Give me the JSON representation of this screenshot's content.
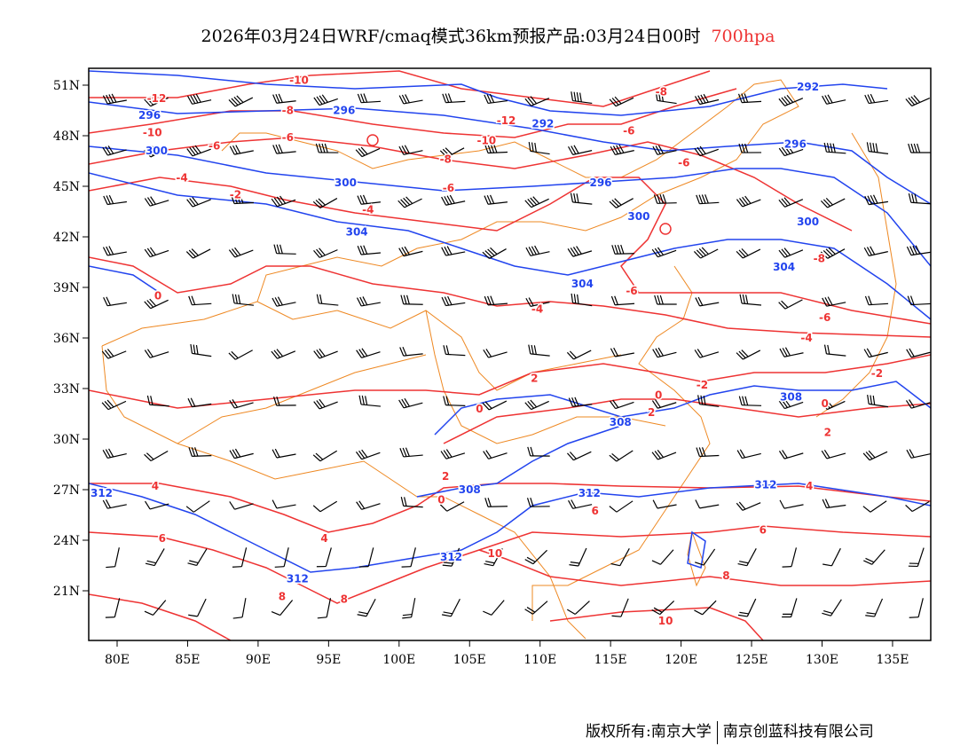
{
  "title": {
    "main": "2026年03月24日WRF/cmaq模式36km预报产品:03月24日00时",
    "level": "700hpa"
  },
  "footer": {
    "left": "版权所有:南京大学",
    "right": "南京创蓝科技有限公司"
  },
  "colors": {
    "height": "#2244ee",
    "temperature": "#ee3333",
    "boundary": "#ee8822",
    "wind": "#000000"
  },
  "axes": {
    "lon_ticks": [
      "80E",
      "85E",
      "90E",
      "95E",
      "100E",
      "105E",
      "110E",
      "115E",
      "120E",
      "125E",
      "130E",
      "135E"
    ],
    "lat_ticks": [
      "51N",
      "48N",
      "45N",
      "42N",
      "39N",
      "36N",
      "33N",
      "30N",
      "27N",
      "24N",
      "21N"
    ]
  },
  "chart_data": {
    "type": "contour-map",
    "lon_range": [
      78,
      138
    ],
    "lat_range": [
      18,
      52
    ],
    "height_labels": [
      [
        "296",
        82.3,
        49.2
      ],
      [
        "296",
        96.1,
        49.5
      ],
      [
        "300",
        82.8,
        47.1
      ],
      [
        "300",
        96.2,
        45.2
      ],
      [
        "304",
        97.0,
        42.3
      ],
      [
        "292",
        110.2,
        48.7
      ],
      [
        "292",
        129.0,
        50.9
      ],
      [
        "296",
        114.3,
        45.2
      ],
      [
        "296",
        128.1,
        47.5
      ],
      [
        "300",
        117.0,
        43.2
      ],
      [
        "300",
        129.0,
        42.9
      ],
      [
        "304",
        127.3,
        40.2
      ],
      [
        "304",
        113.0,
        39.2
      ],
      [
        "308",
        127.8,
        32.5
      ],
      [
        "308",
        115.7,
        31.0
      ],
      [
        "308",
        105.0,
        27.0
      ],
      [
        "312",
        113.5,
        26.8
      ],
      [
        "312",
        126.0,
        27.3
      ],
      [
        "312",
        78.9,
        26.8
      ],
      [
        "312",
        103.7,
        23.0
      ],
      [
        "312",
        92.8,
        21.7
      ]
    ],
    "temperature_labels": [
      [
        "-12",
        82.8,
        50.0
      ],
      [
        "-10",
        92.9,
        51.3
      ],
      [
        "-8",
        92.1,
        49.5
      ],
      [
        "-12",
        107.6,
        48.9
      ],
      [
        "-10",
        106.2,
        47.7
      ],
      [
        "-6",
        92.1,
        47.9
      ],
      [
        "-8",
        103.3,
        46.6
      ],
      [
        "-6",
        116.3,
        48.3
      ],
      [
        "-8",
        118.6,
        50.6
      ],
      [
        "-6",
        120.2,
        46.4
      ],
      [
        "-6",
        103.5,
        44.9
      ],
      [
        "-6",
        86.9,
        47.4
      ],
      [
        "-10",
        82.5,
        48.6
      ],
      [
        "-4",
        84.6,
        45.5
      ],
      [
        "-2",
        88.4,
        44.5
      ],
      [
        "-4",
        97.8,
        43.6
      ],
      [
        "0",
        82.9,
        38.5
      ],
      [
        "-4",
        109.8,
        37.7
      ],
      [
        "-6",
        116.5,
        38.8
      ],
      [
        "-8",
        129.8,
        40.7
      ],
      [
        "-6",
        130.2,
        37.2
      ],
      [
        "-4",
        128.9,
        36.0
      ],
      [
        "-2",
        133.9,
        33.9
      ],
      [
        "0",
        130.2,
        32.1
      ],
      [
        "2",
        130.4,
        30.4
      ],
      [
        "-2",
        121.5,
        33.2
      ],
      [
        "0",
        118.4,
        32.6
      ],
      [
        "2",
        117.9,
        31.8
      ],
      [
        "2",
        109.6,
        33.6
      ],
      [
        "0",
        105.7,
        31.8
      ],
      [
        "2",
        103.3,
        27.8
      ],
      [
        "0",
        103.0,
        26.4
      ],
      [
        "4",
        82.7,
        27.2
      ],
      [
        "6",
        83.2,
        24.1
      ],
      [
        "4",
        94.7,
        24.1
      ],
      [
        "6",
        125.8,
        24.6
      ],
      [
        "4",
        129.1,
        27.2
      ],
      [
        "8",
        123.2,
        21.9
      ],
      [
        "10",
        106.8,
        23.2
      ],
      [
        "8",
        96.1,
        20.5
      ],
      [
        "8",
        91.7,
        21.3
      ],
      [
        "10",
        118.9,
        19.2
      ],
      [
        "6",
        113.9,
        26.8
      ]
    ]
  }
}
